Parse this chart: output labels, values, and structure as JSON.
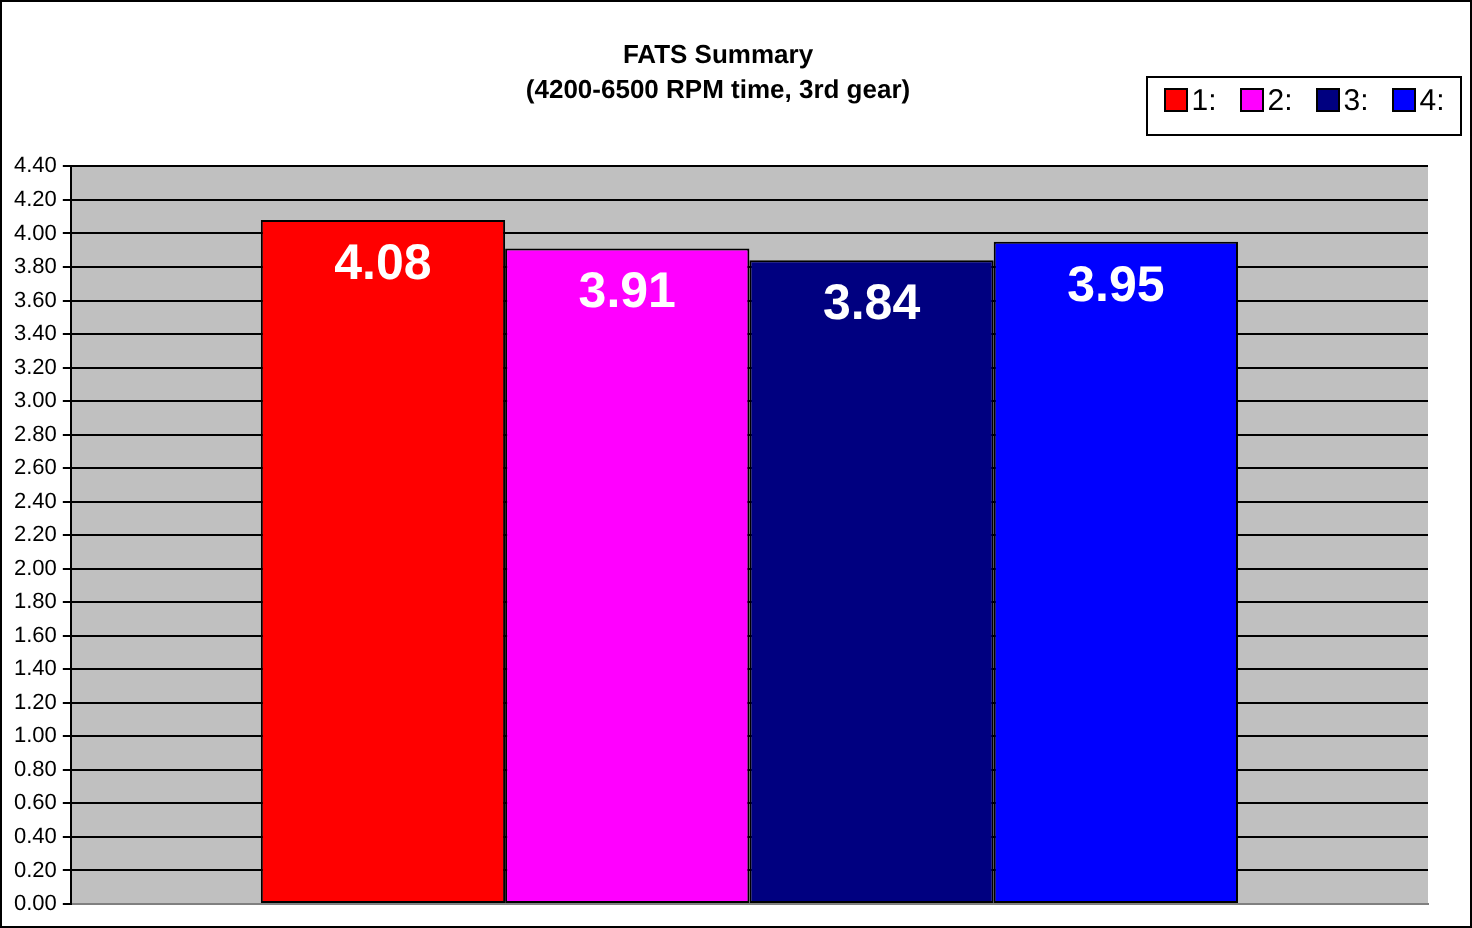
{
  "chart_data": {
    "type": "bar",
    "title": "FATS Summary",
    "subtitle": "(4200-6500 RPM time, 3rd gear)",
    "categories": [
      null
    ],
    "series": [
      {
        "name": "1:",
        "color": "#ff0000",
        "values": [
          4.08
        ]
      },
      {
        "name": "2:",
        "color": "#ff00ff",
        "values": [
          3.91
        ]
      },
      {
        "name": "3:",
        "color": "#000080",
        "values": [
          3.84
        ]
      },
      {
        "name": "4:",
        "color": "#0000ff",
        "values": [
          3.95
        ]
      }
    ],
    "ylim": [
      0,
      4.4
    ],
    "yticks": [
      {
        "value": 0,
        "label": "0.00"
      },
      {
        "value": 0.2,
        "label": "0.20"
      },
      {
        "value": 0.4,
        "label": "0.40"
      },
      {
        "value": 0.6,
        "label": "0.60"
      },
      {
        "value": 0.8,
        "label": "0.80"
      },
      {
        "value": 1,
        "label": "1.00"
      },
      {
        "value": 1.2,
        "label": "1.20"
      },
      {
        "value": 1.4,
        "label": "1.40"
      },
      {
        "value": 1.6,
        "label": "1.60"
      },
      {
        "value": 1.8,
        "label": "1.80"
      },
      {
        "value": 2,
        "label": "2.00"
      },
      {
        "value": 2.2,
        "label": "2.20"
      },
      {
        "value": 2.4,
        "label": "2.40"
      },
      {
        "value": 2.6,
        "label": "2.60"
      },
      {
        "value": 2.8,
        "label": "2.80"
      },
      {
        "value": 3,
        "label": "3.00"
      },
      {
        "value": 3.2,
        "label": "3.20"
      },
      {
        "value": 3.4,
        "label": "3.40"
      },
      {
        "value": 3.6,
        "label": "3.60"
      },
      {
        "value": 3.8,
        "label": "3.80"
      },
      {
        "value": 4,
        "label": "4.00"
      },
      {
        "value": 4.2,
        "label": "4.20"
      },
      {
        "value": 4.4,
        "label": "4.40"
      }
    ],
    "grid": "y",
    "legend": "top right",
    "data_labels": true
  }
}
